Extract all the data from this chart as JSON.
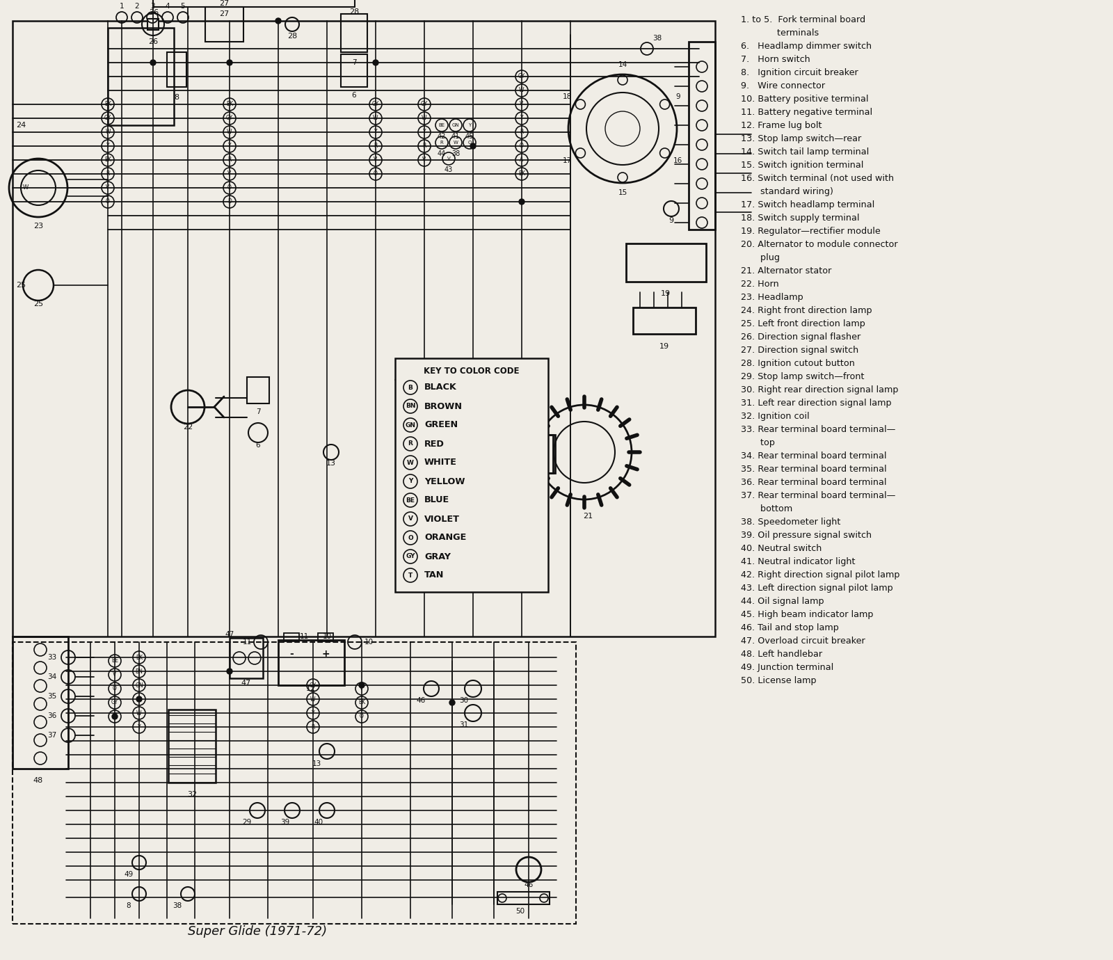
{
  "title": "Super Glide (1971-72)",
  "bg_color": "#f0ede6",
  "text_color": "#111111",
  "legend_items": [
    "1. to 5.  Fork terminal board",
    "             terminals",
    "6.   Headlamp dimmer switch",
    "7.   Horn switch",
    "8.   Ignition circuit breaker",
    "9.   Wire connector",
    "10. Battery positive terminal",
    "11. Battery negative terminal",
    "12. Frame lug bolt",
    "13. Stop lamp switch—rear",
    "14. Switch tail lamp terminal",
    "15. Switch ignition terminal",
    "16. Switch terminal (not used with",
    "       standard wiring)",
    "17. Switch headlamp terminal",
    "18. Switch supply terminal",
    "19. Regulator—rectifier module",
    "20. Alternator to module connector",
    "       plug",
    "21. Alternator stator",
    "22. Horn",
    "23. Headlamp",
    "24. Right front direction lamp",
    "25. Left front direction lamp",
    "26. Direction signal flasher",
    "27. Direction signal switch",
    "28. Ignition cutout button",
    "29. Stop lamp switch—front",
    "30. Right rear direction signal lamp",
    "31. Left rear direction signal lamp",
    "32. Ignition coil",
    "33. Rear terminal board terminal—",
    "       top",
    "34. Rear terminal board terminal",
    "35. Rear terminal board terminal",
    "36. Rear terminal board terminal",
    "37. Rear terminal board terminal—",
    "       bottom",
    "38. Speedometer light",
    "39. Oil pressure signal switch",
    "40. Neutral switch",
    "41. Neutral indicator light",
    "42. Right direction signal pilot lamp",
    "43. Left direction signal pilot lamp",
    "44. Oil signal lamp",
    "45. High beam indicator lamp",
    "46. Tail and stop lamp",
    "47. Overload circuit breaker",
    "48. Left handlebar",
    "49. Junction terminal",
    "50. License lamp"
  ],
  "color_code_title": "KEY TO COLOR CODE",
  "color_codes": [
    {
      "symbol": "B",
      "name": "BLACK"
    },
    {
      "symbol": "BN",
      "name": "BROWN"
    },
    {
      "symbol": "GN",
      "name": "GREEN"
    },
    {
      "symbol": "R",
      "name": "RED"
    },
    {
      "symbol": "W",
      "name": "WHITE"
    },
    {
      "symbol": "Y",
      "name": "YELLOW"
    },
    {
      "symbol": "BE",
      "name": "BLUE"
    },
    {
      "symbol": "V",
      "name": "VIOLET"
    },
    {
      "symbol": "O",
      "name": "ORANGE"
    },
    {
      "symbol": "GY",
      "name": "GRAY"
    },
    {
      "symbol": "T",
      "name": "TAN"
    }
  ]
}
